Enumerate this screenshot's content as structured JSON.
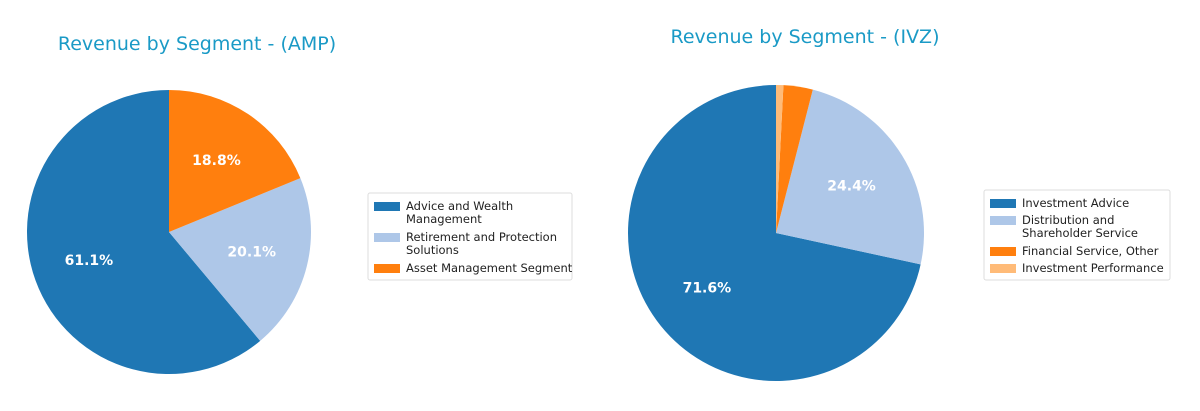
{
  "chart_data": [
    {
      "type": "pie",
      "title": "Revenue by Segment - (AMP)",
      "categories": [
        "Advice and Wealth\nManagement",
        "Retirement and Protection\nSolutions",
        "Asset Management Segment"
      ],
      "values": [
        61.1,
        20.1,
        18.8
      ],
      "value_labels": [
        "61.1%",
        "20.1%",
        "18.8%"
      ],
      "colors": [
        "#1f77b4",
        "#aec7e8",
        "#ff7f0e"
      ],
      "legend": "right"
    },
    {
      "type": "pie",
      "title": "Revenue by Segment - (IVZ)",
      "categories": [
        "Investment Advice",
        "Distribution and\nShareholder Service",
        "Financial Service, Other",
        "Investment Performance"
      ],
      "values": [
        71.6,
        24.4,
        3.2,
        0.8
      ],
      "value_labels": [
        "71.6%",
        "24.4%",
        null,
        null
      ],
      "colors": [
        "#1f77b4",
        "#aec7e8",
        "#ff7f0e",
        "#ffbb78"
      ],
      "legend": "right"
    }
  ]
}
